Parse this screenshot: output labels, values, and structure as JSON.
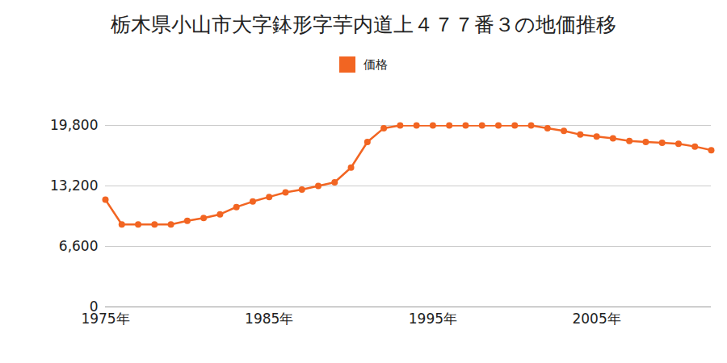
{
  "chart_data": {
    "type": "line",
    "title": "栃木県小山市大字鉢形字芋内道上４７７番３の地価推移",
    "x": [
      1975,
      1976,
      1977,
      1978,
      1979,
      1980,
      1981,
      1982,
      1983,
      1984,
      1985,
      1986,
      1987,
      1988,
      1989,
      1990,
      1991,
      1992,
      1993,
      1994,
      1995,
      1996,
      1997,
      1998,
      1999,
      2000,
      2001,
      2002,
      2003,
      2004,
      2005,
      2006,
      2007,
      2008,
      2009,
      2010,
      2011,
      2012
    ],
    "series": [
      {
        "name": "価格",
        "color": "#f26522",
        "marker": "circle",
        "values": [
          11700,
          9000,
          9000,
          9000,
          9000,
          9400,
          9700,
          10100,
          10900,
          11500,
          12000,
          12500,
          12800,
          13200,
          13600,
          15200,
          18000,
          19500,
          19800,
          19800,
          19800,
          19800,
          19800,
          19800,
          19800,
          19800,
          19800,
          19500,
          19200,
          18800,
          18600,
          18400,
          18100,
          18000,
          17900,
          17800,
          17500,
          17100
        ]
      }
    ],
    "xlim": [
      1975,
      2012
    ],
    "xticks": [
      {
        "value": 1975,
        "label": "1975年"
      },
      {
        "value": 1985,
        "label": "1985年"
      },
      {
        "value": 1995,
        "label": "1995年"
      },
      {
        "value": 2005,
        "label": "2005年"
      }
    ],
    "ylim": [
      0,
      19800
    ],
    "yticks": [
      0,
      {
        "value": 6600,
        "label": "6,600"
      },
      {
        "value": 13200,
        "label": "13,200"
      },
      {
        "value": 19800,
        "label": "19,800"
      }
    ],
    "grid": true,
    "legend": "top"
  }
}
